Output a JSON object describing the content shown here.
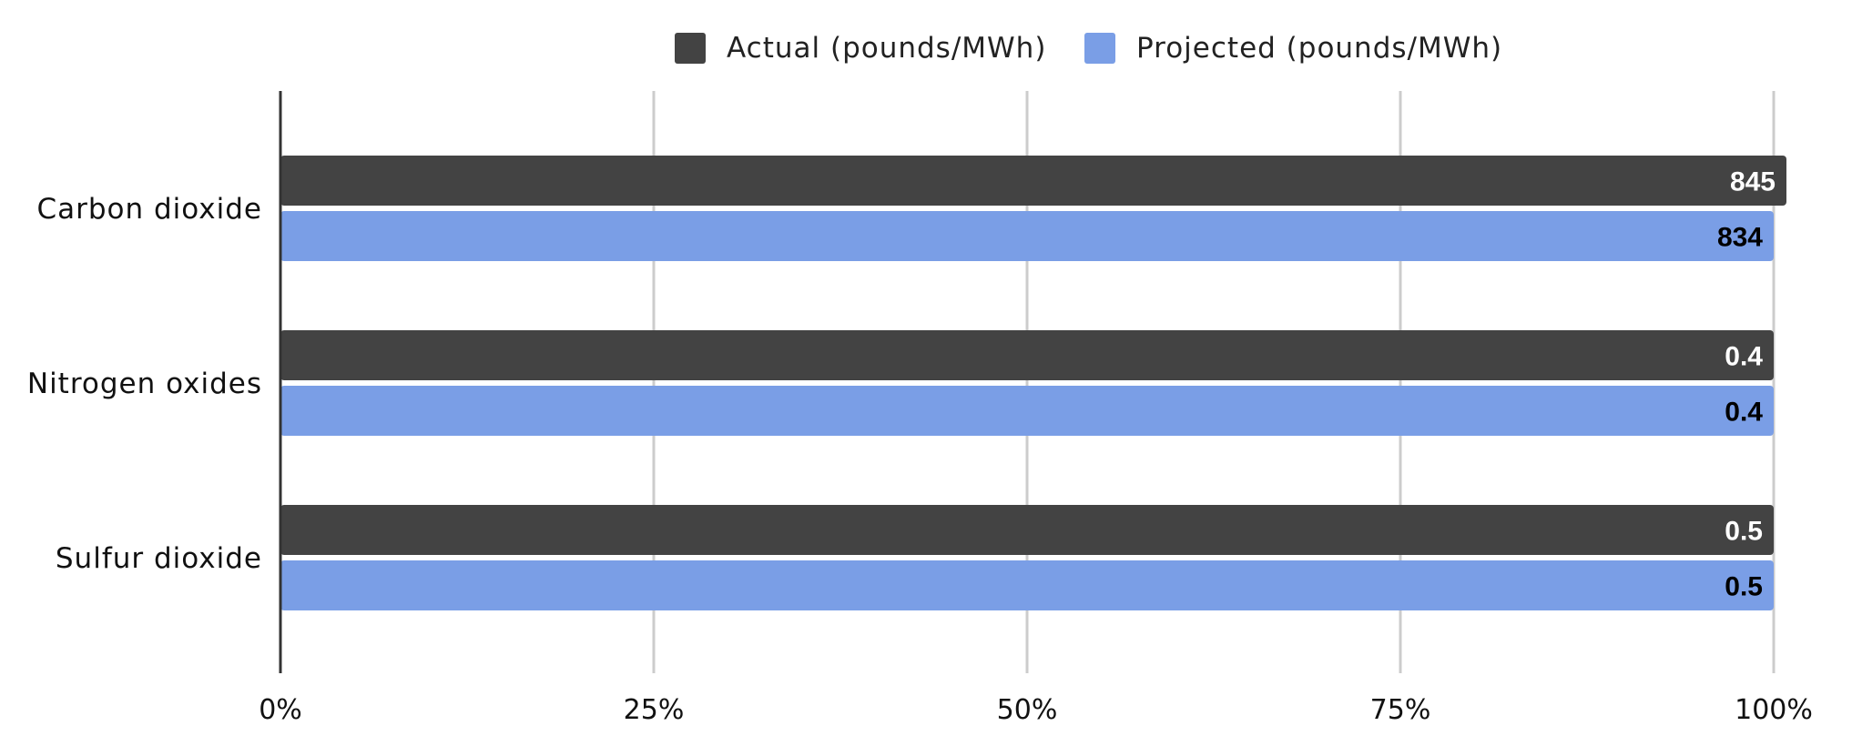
{
  "chart_data": {
    "type": "bar",
    "orientation": "horizontal",
    "stacking": "percent",
    "categories": [
      "Carbon dioxide",
      "Nitrogen oxides",
      "Sulfur dioxide"
    ],
    "series": [
      {
        "name": "Actual (pounds/MWh)",
        "color": "#434343",
        "label_color": "#ffffff",
        "values": [
          845,
          0.4,
          0.5
        ],
        "labels": [
          "845",
          "0.4",
          "0.5"
        ]
      },
      {
        "name": "Projected (pounds/MWh)",
        "color": "#7a9ee6",
        "label_color": "#000000",
        "values": [
          834,
          0.4,
          0.5
        ],
        "labels": [
          "834",
          "0.4",
          "0.5"
        ]
      }
    ],
    "x_ticks": [
      "0%",
      "25%",
      "50%",
      "75%",
      "100%"
    ],
    "xlim": [
      0,
      100
    ],
    "grid": true,
    "legend_position": "top",
    "title": "",
    "xlabel": "",
    "ylabel": ""
  }
}
